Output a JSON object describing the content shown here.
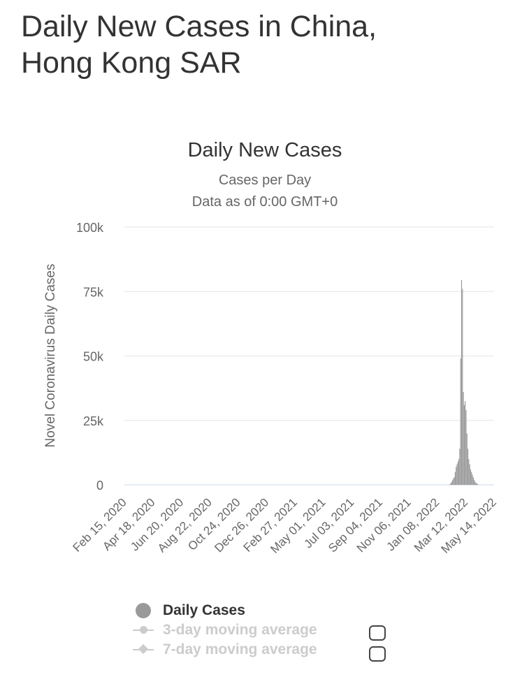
{
  "page": {
    "heading_line1": "Daily New Cases in China,",
    "heading_line2": "Hong Kong SAR"
  },
  "chart_data": {
    "type": "bar",
    "title": "Daily New Cases",
    "subtitle_line1": "Cases per Day",
    "subtitle_line2": "Data as of 0:00 GMT+0",
    "ylabel": "Novel Coronavirus Daily Cases",
    "xlabel": "",
    "ylim": [
      0,
      100000
    ],
    "y_ticks": [
      0,
      25000,
      50000,
      75000,
      100000
    ],
    "y_tick_labels": [
      "0",
      "25k",
      "50k",
      "75k",
      "100k"
    ],
    "x_range": [
      "2020-02-15",
      "2022-05-14"
    ],
    "x_ticks": [
      "2020-02-15",
      "2020-04-18",
      "2020-06-20",
      "2020-08-22",
      "2020-10-24",
      "2020-12-26",
      "2021-02-27",
      "2021-05-01",
      "2021-07-03",
      "2021-09-04",
      "2021-11-06",
      "2022-01-08",
      "2022-03-12",
      "2022-05-14"
    ],
    "x_tick_labels": [
      "Feb 15, 2020",
      "Apr 18, 2020",
      "Jun 20, 2020",
      "Aug 22, 2020",
      "Oct 24, 2020",
      "Dec 26, 2020",
      "Feb 27, 2021",
      "May 01, 2021",
      "Jul 03, 2021",
      "Sep 04, 2021",
      "Nov 06, 2021",
      "Jan 08, 2022",
      "Mar 12, 2022",
      "May 14, 2022"
    ],
    "grid": true,
    "legend_position": "bottom-left",
    "series": [
      {
        "name": "Daily Cases",
        "color": "#999999",
        "points": [
          {
            "date": "2022-02-05",
            "value": 200
          },
          {
            "date": "2022-02-07",
            "value": 600
          },
          {
            "date": "2022-02-09",
            "value": 1200
          },
          {
            "date": "2022-02-11",
            "value": 1800
          },
          {
            "date": "2022-02-13",
            "value": 2500
          },
          {
            "date": "2022-02-15",
            "value": 3000
          },
          {
            "date": "2022-02-17",
            "value": 5000
          },
          {
            "date": "2022-02-19",
            "value": 7000
          },
          {
            "date": "2022-02-21",
            "value": 8000
          },
          {
            "date": "2022-02-23",
            "value": 9000
          },
          {
            "date": "2022-02-25",
            "value": 10000
          },
          {
            "date": "2022-02-27",
            "value": 14000
          },
          {
            "date": "2022-03-01",
            "value": 49000
          },
          {
            "date": "2022-03-03",
            "value": 79500
          },
          {
            "date": "2022-03-05",
            "value": 76000
          },
          {
            "date": "2022-03-07",
            "value": 36000
          },
          {
            "date": "2022-03-09",
            "value": 31000
          },
          {
            "date": "2022-03-11",
            "value": 32500
          },
          {
            "date": "2022-03-13",
            "value": 29000
          },
          {
            "date": "2022-03-15",
            "value": 20000
          },
          {
            "date": "2022-03-17",
            "value": 14000
          },
          {
            "date": "2022-03-19",
            "value": 10000
          },
          {
            "date": "2022-03-21",
            "value": 8000
          },
          {
            "date": "2022-03-23",
            "value": 6000
          },
          {
            "date": "2022-03-25",
            "value": 5000
          },
          {
            "date": "2022-03-27",
            "value": 4000
          },
          {
            "date": "2022-03-29",
            "value": 3000
          },
          {
            "date": "2022-03-31",
            "value": 2000
          },
          {
            "date": "2022-04-02",
            "value": 1200
          },
          {
            "date": "2022-04-04",
            "value": 800
          },
          {
            "date": "2022-04-06",
            "value": 500
          },
          {
            "date": "2022-04-08",
            "value": 300
          }
        ]
      }
    ]
  },
  "legend": {
    "items": [
      {
        "label": "Daily Cases",
        "state": "active",
        "marker": "circle",
        "color": "#999999"
      },
      {
        "label": "3-day moving average",
        "state": "inactive",
        "marker": "line-dot",
        "color": "#cccccc"
      },
      {
        "label": "7-day moving average",
        "state": "inactive",
        "marker": "line-diamond",
        "color": "#cccccc"
      }
    ]
  },
  "colors": {
    "text": "#333333",
    "axis_text": "#666666",
    "grid": "#e6e6e6",
    "bar": "#999999",
    "inactive": "#cccccc"
  }
}
